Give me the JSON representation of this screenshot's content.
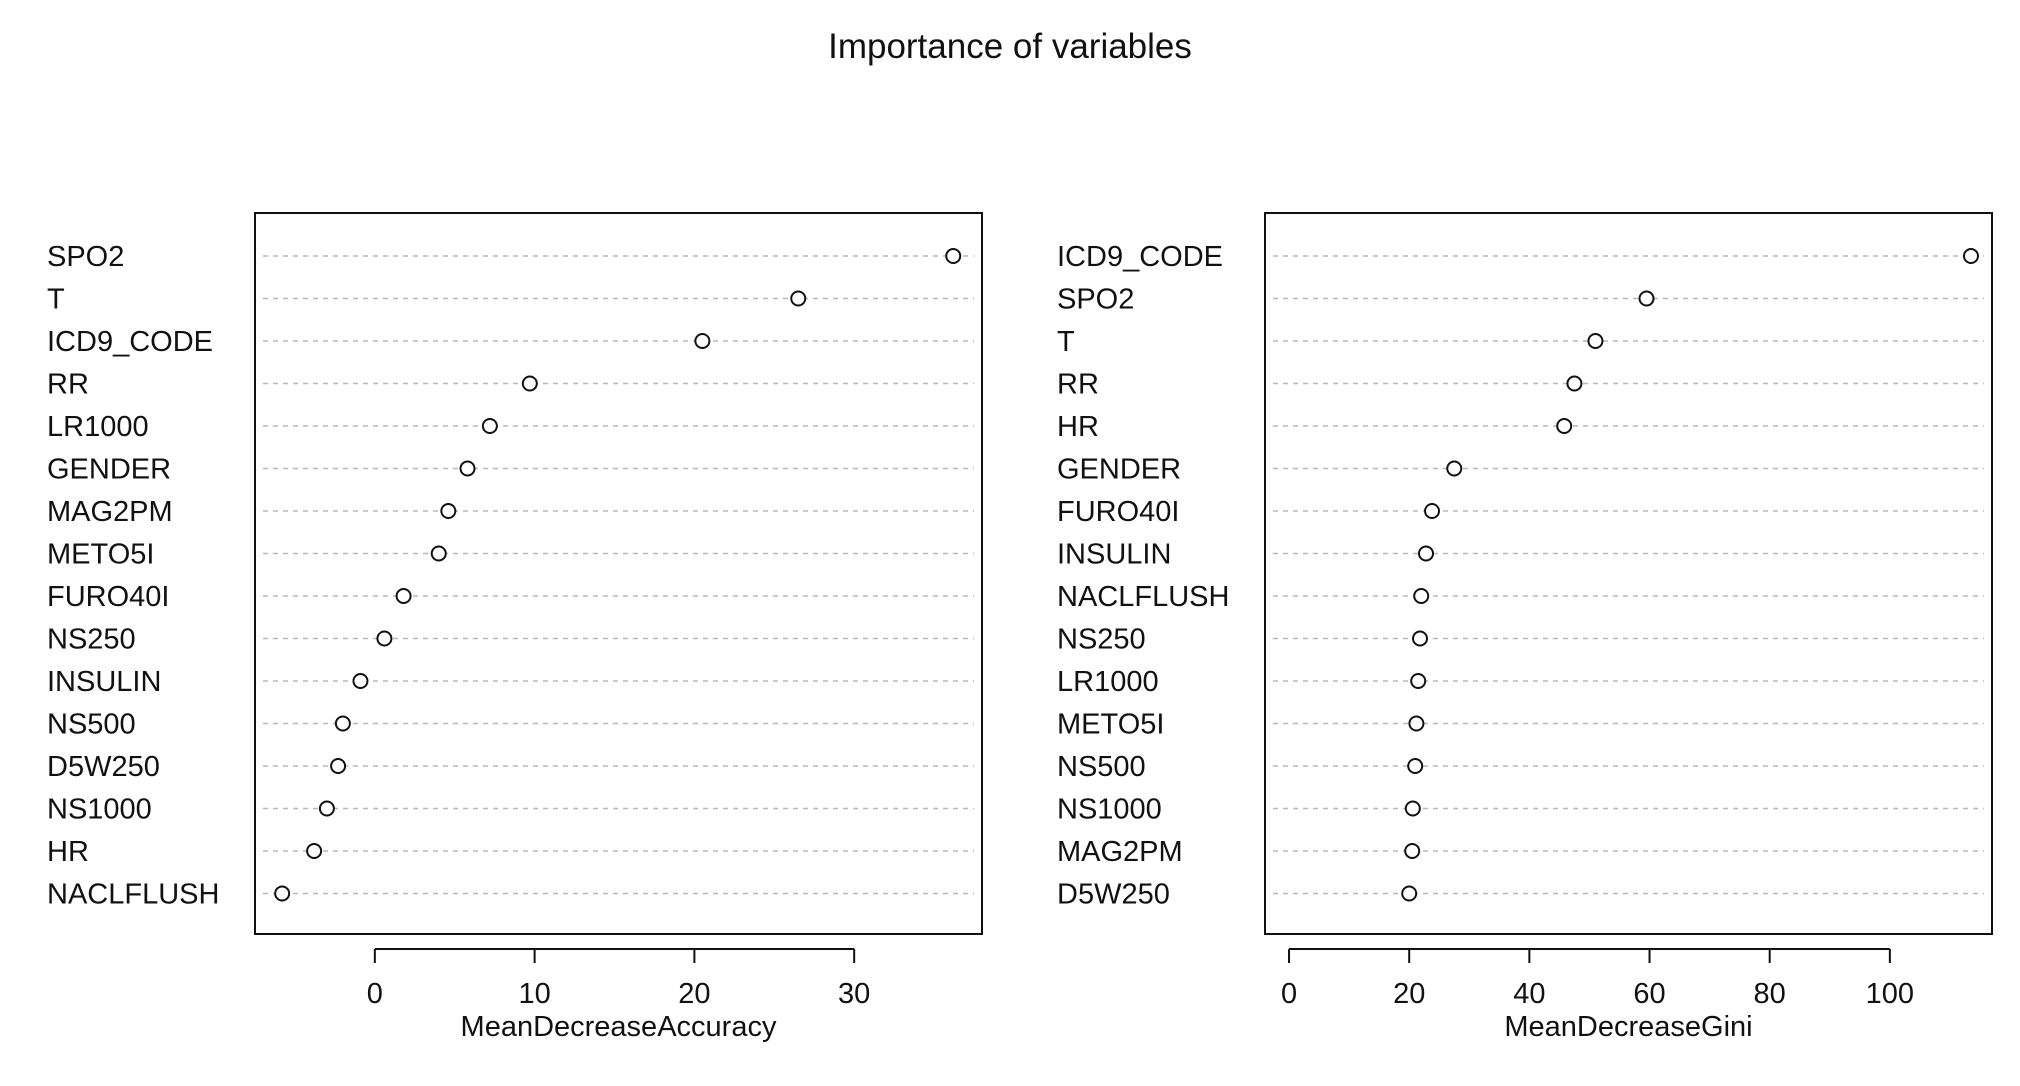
{
  "title": "Importance of variables",
  "chart_data": [
    {
      "type": "scatter",
      "xlabel": "MeanDecreaseAccuracy",
      "xlim": [
        -7.5,
        38
      ],
      "xticks": [
        0,
        10,
        20,
        30
      ],
      "grid": "horizontal dotted",
      "categories": [
        "SPO2",
        "T",
        "ICD9_CODE",
        "RR",
        "LR1000",
        "GENDER",
        "MAG2PM",
        "METO5I",
        "FURO40I",
        "NS250",
        "INSULIN",
        "NS500",
        "D5W250",
        "NS1000",
        "HR",
        "NACLFLUSH"
      ],
      "values": [
        36.2,
        26.5,
        20.5,
        9.7,
        7.2,
        5.8,
        4.6,
        4.0,
        1.8,
        0.6,
        -0.9,
        -2.0,
        -2.3,
        -3.0,
        -3.8,
        -5.8
      ]
    },
    {
      "type": "scatter",
      "xlabel": "MeanDecreaseGini",
      "xlim": [
        -4,
        117
      ],
      "xticks": [
        0,
        20,
        40,
        60,
        80,
        100
      ],
      "grid": "horizontal dotted",
      "categories": [
        "ICD9_CODE",
        "SPO2",
        "T",
        "RR",
        "HR",
        "GENDER",
        "FURO40I",
        "INSULIN",
        "NACLFLUSH",
        "NS250",
        "LR1000",
        "METO5I",
        "NS500",
        "NS1000",
        "MAG2PM",
        "D5W250"
      ],
      "values": [
        113.5,
        59.5,
        51.0,
        47.5,
        45.8,
        27.5,
        23.8,
        22.8,
        22.0,
        21.8,
        21.5,
        21.2,
        21.0,
        20.6,
        20.5,
        20.0
      ]
    }
  ]
}
